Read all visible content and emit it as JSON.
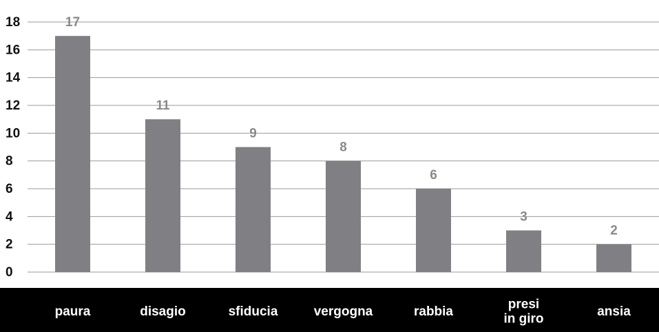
{
  "chart_data": {
    "type": "bar",
    "categories": [
      "paura",
      "disagio",
      "sfiducia",
      "vergogna",
      "rabbia",
      "presi in giro",
      "ansia"
    ],
    "category_lines": [
      [
        "paura"
      ],
      [
        "disagio"
      ],
      [
        "sfiducia"
      ],
      [
        "vergogna"
      ],
      [
        "rabbia"
      ],
      [
        "presi",
        "in giro"
      ],
      [
        "ansia"
      ]
    ],
    "values": [
      17,
      11,
      9,
      8,
      6,
      3,
      2
    ],
    "data_labels": [
      "17",
      "11",
      "9",
      "8",
      "6",
      "3",
      "2"
    ],
    "yticks": [
      0,
      2,
      4,
      6,
      8,
      10,
      12,
      14,
      16,
      18
    ],
    "ylim": [
      0,
      18
    ],
    "title": "",
    "xlabel": "",
    "ylabel": "",
    "grid": true,
    "legend": "none",
    "colors": {
      "bar": "#808084",
      "grid": "#9a9a9a",
      "data_label": "#8a8a8e",
      "axis_text": "#111111",
      "category_band": "#000000",
      "category_text": "#ffffff"
    }
  }
}
